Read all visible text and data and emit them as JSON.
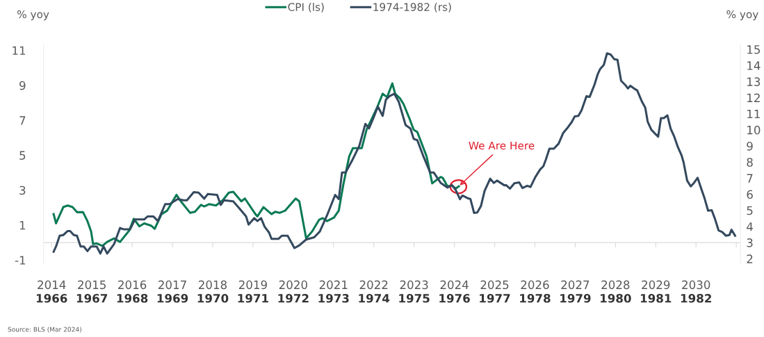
{
  "chart_data": {
    "type": "line",
    "ylabel": "% yoy",
    "y2label": "% yoy",
    "legend": "top",
    "marker": "none",
    "line_style": "solid",
    "xlim": [
      2013.8,
      2031.1
    ],
    "xticks": [
      {
        "value": 2014,
        "label": "2014"
      },
      {
        "value": 2015,
        "label": "2015"
      },
      {
        "value": 2016,
        "label": "2016"
      },
      {
        "value": 2017,
        "label": "2017"
      },
      {
        "value": 2018,
        "label": "2018"
      },
      {
        "value": 2019,
        "label": "2019"
      },
      {
        "value": 2020,
        "label": "2020"
      },
      {
        "value": 2021,
        "label": "2021"
      },
      {
        "value": 2022,
        "label": "2022"
      },
      {
        "value": 2023,
        "label": "2023"
      },
      {
        "value": 2024,
        "label": "2024"
      },
      {
        "value": 2025,
        "label": "2025"
      },
      {
        "value": 2026,
        "label": "2026"
      },
      {
        "value": 2027,
        "label": "2027"
      },
      {
        "value": 2028,
        "label": "2028"
      },
      {
        "value": 2029,
        "label": "2029"
      },
      {
        "value": 2030,
        "label": "2030"
      },
      {
        "value": 2031,
        "label": null
      }
    ],
    "x2lim": [
      1965.8,
      1983.1
    ],
    "x2ticks": [
      1966,
      1967,
      1968,
      1969,
      1970,
      1971,
      1972,
      1973,
      1974,
      1975,
      1976,
      1977,
      1978,
      1979,
      1980,
      1981,
      1982
    ],
    "ylim": [
      -1.2,
      11.3
    ],
    "yticks": [
      -1,
      1,
      3,
      5,
      7,
      9,
      11
    ],
    "y2lim": [
      1.7,
      15.26
    ],
    "y2ticks": [
      2,
      3,
      4,
      5,
      6,
      7,
      8,
      9,
      10,
      11,
      12,
      13,
      14,
      15
    ],
    "series": [
      {
        "name": "CPI (ls)",
        "color": "#0b7a55",
        "x": [
          2014.05,
          2014.11,
          2014.29,
          2014.4,
          2014.52,
          2014.63,
          2014.78,
          2014.89,
          2014.98,
          2015.03,
          2015.12,
          2015.26,
          2015.38,
          2015.55,
          2015.7,
          2015.93,
          2016.04,
          2016.18,
          2016.3,
          2016.47,
          2016.56,
          2016.73,
          2016.87,
          2017.1,
          2017.21,
          2017.44,
          2017.56,
          2017.71,
          2017.79,
          2017.91,
          2018.08,
          2018.25,
          2018.4,
          2018.51,
          2018.71,
          2018.8,
          2019.06,
          2019.11,
          2019.26,
          2019.46,
          2019.55,
          2019.66,
          2019.8,
          2020.06,
          2020.15,
          2020.32,
          2020.47,
          2020.64,
          2020.73,
          2020.84,
          2021.01,
          2021.13,
          2021.24,
          2021.39,
          2021.48,
          2021.59,
          2021.7,
          2021.82,
          2021.93,
          2022.08,
          2022.22,
          2022.33,
          2022.46,
          2022.53,
          2022.65,
          2022.74,
          2022.88,
          2022.99,
          2023.08,
          2023.31,
          2023.45,
          2023.54,
          2023.66,
          2023.71,
          2023.83,
          2023.94,
          2024.03,
          2024.11
        ],
        "values": [
          1.63,
          1.1,
          2.03,
          2.12,
          2.03,
          1.74,
          1.74,
          1.23,
          0.64,
          -0.09,
          -0.05,
          -0.19,
          0.04,
          0.24,
          0.04,
          0.7,
          1.36,
          0.93,
          1.1,
          0.97,
          0.79,
          1.63,
          1.83,
          2.73,
          2.36,
          1.7,
          1.76,
          2.16,
          2.07,
          2.2,
          2.12,
          2.42,
          2.86,
          2.91,
          2.36,
          2.52,
          1.63,
          1.5,
          2.03,
          1.63,
          1.76,
          1.7,
          1.83,
          2.52,
          2.36,
          0.24,
          0.64,
          1.3,
          1.4,
          1.23,
          1.43,
          1.83,
          3.28,
          4.94,
          5.4,
          5.4,
          5.4,
          6.46,
          6.99,
          7.72,
          8.52,
          8.32,
          9.11,
          8.52,
          8.25,
          7.92,
          7.13,
          6.46,
          6.33,
          4.94,
          3.39,
          3.55,
          3.75,
          3.71,
          3.22,
          3.28,
          3.09,
          3.22
        ]
      },
      {
        "name": "1974-1982 (rs)",
        "color": "#34495e",
        "axis": "y2",
        "x": [
          2014.05,
          2014.11,
          2014.2,
          2014.29,
          2014.4,
          2014.46,
          2014.55,
          2014.63,
          2014.72,
          2014.8,
          2014.89,
          2014.98,
          2015.12,
          2015.21,
          2015.29,
          2015.38,
          2015.55,
          2015.7,
          2015.78,
          2015.95,
          2016.07,
          2016.3,
          2016.38,
          2016.53,
          2016.64,
          2016.82,
          2016.93,
          2017.13,
          2017.28,
          2017.36,
          2017.53,
          2017.65,
          2017.79,
          2017.88,
          2018.11,
          2018.2,
          2018.28,
          2018.51,
          2018.66,
          2018.83,
          2018.89,
          2019.03,
          2019.11,
          2019.2,
          2019.29,
          2019.4,
          2019.46,
          2019.63,
          2019.72,
          2019.86,
          2020.03,
          2020.15,
          2020.32,
          2020.52,
          2020.66,
          2020.84,
          2021.04,
          2021.13,
          2021.21,
          2021.3,
          2021.47,
          2021.64,
          2021.79,
          2021.88,
          2021.99,
          2022.1,
          2022.22,
          2022.3,
          2022.39,
          2022.51,
          2022.62,
          2022.79,
          2022.91,
          2022.99,
          2023.08,
          2023.22,
          2023.4,
          2023.49,
          2023.66,
          2023.83,
          2023.94,
          2024.03,
          2024.14,
          2024.2,
          2024.32,
          2024.4,
          2024.49,
          2024.57,
          2024.66,
          2024.75,
          2024.89,
          2024.98,
          2025.06,
          2025.24,
          2025.29,
          2025.38,
          2025.49,
          2025.61,
          2025.69,
          2025.81,
          2025.89,
          2026.01,
          2026.13,
          2026.21,
          2026.27,
          2026.36,
          2026.47,
          2026.59,
          2026.7,
          2026.82,
          2026.91,
          2026.99,
          2027.08,
          2027.16,
          2027.28,
          2027.36,
          2027.48,
          2027.56,
          2027.62,
          2027.71,
          2027.79,
          2027.88,
          2027.97,
          2028.05,
          2028.14,
          2028.25,
          2028.31,
          2028.37,
          2028.46,
          2028.54,
          2028.66,
          2028.74,
          2028.8,
          2028.89,
          2028.97,
          2029.06,
          2029.13,
          2029.2,
          2029.29,
          2029.37,
          2029.46,
          2029.55,
          2029.64,
          2029.69,
          2029.78,
          2029.87,
          2029.95,
          2030.04,
          2030.13,
          2030.21,
          2030.3,
          2030.39,
          2030.47,
          2030.56,
          2030.65,
          2030.74,
          2030.83,
          2030.88,
          2030.97
        ],
        "values": [
          2.43,
          2.76,
          3.43,
          3.47,
          3.72,
          3.72,
          3.47,
          3.43,
          2.76,
          2.76,
          2.47,
          2.76,
          2.76,
          2.32,
          2.76,
          2.32,
          2.9,
          3.91,
          3.83,
          3.83,
          4.44,
          4.44,
          4.62,
          4.62,
          4.34,
          5.39,
          5.39,
          5.7,
          5.63,
          5.63,
          6.13,
          6.1,
          5.73,
          6.02,
          5.96,
          5.34,
          5.63,
          5.56,
          5.13,
          4.62,
          4.12,
          4.52,
          4.34,
          4.52,
          3.98,
          3.62,
          3.23,
          3.23,
          3.43,
          3.43,
          2.66,
          2.83,
          3.19,
          3.33,
          3.69,
          4.7,
          5.96,
          5.7,
          7.35,
          7.35,
          8.14,
          9.01,
          10.37,
          10.09,
          10.73,
          11.45,
          10.87,
          11.88,
          12.09,
          12.24,
          11.74,
          10.3,
          10.08,
          9.44,
          9.36,
          8.43,
          7.35,
          7.35,
          6.71,
          6.42,
          6.56,
          6.28,
          5.7,
          5.92,
          5.77,
          5.7,
          4.84,
          4.87,
          5.27,
          6.2,
          6.97,
          6.71,
          6.85,
          6.56,
          6.56,
          6.35,
          6.68,
          6.74,
          6.39,
          6.53,
          6.45,
          7.07,
          7.54,
          7.74,
          8.14,
          8.83,
          8.83,
          9.15,
          9.8,
          10.16,
          10.47,
          10.84,
          10.87,
          11.23,
          12.09,
          12.05,
          12.81,
          13.46,
          13.78,
          14.03,
          14.75,
          14.68,
          14.39,
          14.35,
          13.05,
          12.77,
          12.57,
          12.74,
          12.57,
          12.45,
          11.74,
          11.38,
          10.51,
          10.01,
          9.8,
          9.58,
          10.73,
          10.73,
          10.9,
          10.08,
          9.58,
          8.93,
          8.43,
          8.0,
          6.85,
          6.49,
          6.71,
          7.02,
          6.35,
          5.77,
          4.98,
          5.01,
          4.48,
          3.76,
          3.66,
          3.43,
          3.47,
          3.8,
          3.43
        ]
      }
    ],
    "annotations": [
      {
        "text": "We Are Here",
        "x": 2024.1,
        "y": 3.2
      },
      "Source: BLS (Mar 2024)"
    ]
  }
}
